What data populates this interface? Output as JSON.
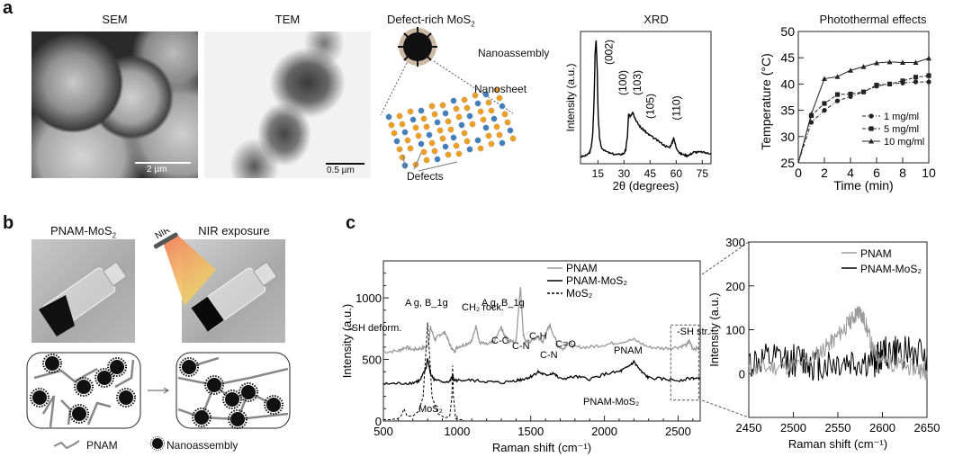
{
  "panel_a": {
    "letter": "a",
    "sem": {
      "title": "SEM",
      "scale_bar": "2 µm"
    },
    "tem": {
      "title": "TEM",
      "scale_bar": "0.5 µm"
    },
    "schematic": {
      "title_main": "Defect-rich MoS",
      "title_sub": "2",
      "nanoassembly": "Nanoassembly",
      "nanosheet": "Nanosheet",
      "defects": "Defects"
    }
  },
  "panel_b": {
    "letter": "b",
    "left_title_main": "PNAM-MoS",
    "left_title_sub": "2",
    "right_title": "NIR exposure",
    "nir_label": "NIR",
    "legend_pnam": "PNAM",
    "legend_nano": "Nanoassembly"
  },
  "panel_c": {
    "letter": "c"
  },
  "chart_data": [
    {
      "id": "xrd",
      "type": "line",
      "title": "XRD",
      "xlabel": "2θ (degrees)",
      "ylabel": "Intensity (a.u.)",
      "xlim": [
        5,
        80
      ],
      "xticks": [
        15,
        30,
        45,
        60,
        75
      ],
      "x": [
        5,
        8,
        10,
        11,
        12,
        12.8,
        13.4,
        14,
        14.6,
        15.2,
        16,
        17,
        19,
        22,
        25,
        28,
        30,
        31,
        32,
        32.6,
        33,
        34,
        35,
        35.5,
        36.5,
        38,
        40,
        42,
        43,
        45,
        48,
        51,
        54,
        56,
        57.5,
        58.5,
        60,
        62,
        64,
        66,
        68,
        70,
        72,
        75,
        78,
        80
      ],
      "values": [
        0.02,
        0.03,
        0.05,
        0.09,
        0.2,
        0.5,
        0.9,
        1.0,
        0.75,
        0.35,
        0.17,
        0.1,
        0.07,
        0.05,
        0.04,
        0.04,
        0.05,
        0.08,
        0.2,
        0.38,
        0.36,
        0.37,
        0.4,
        0.38,
        0.34,
        0.3,
        0.26,
        0.24,
        0.22,
        0.2,
        0.17,
        0.14,
        0.11,
        0.1,
        0.13,
        0.18,
        0.1,
        0.05,
        0.04,
        0.03,
        0.04,
        0.06,
        0.06,
        0.06,
        0.05,
        0.05
      ],
      "annotations": [
        "(002)",
        "(100)",
        "(103)",
        "(105)",
        "(110)"
      ],
      "annotation_x": [
        14,
        32.5,
        35.5,
        43,
        58
      ]
    },
    {
      "id": "photothermal",
      "type": "line",
      "title": "Photothermal effects",
      "xlabel": "Time (min)",
      "ylabel": "Temperature (°C)",
      "xlim": [
        0,
        10
      ],
      "ylim": [
        25,
        50
      ],
      "xticks": [
        0,
        2,
        4,
        6,
        8,
        10
      ],
      "yticks": [
        25,
        30,
        35,
        40,
        45,
        50
      ],
      "x": [
        0,
        1,
        2,
        3,
        4,
        5,
        6,
        7,
        8,
        9,
        10
      ],
      "series": [
        {
          "name": "1 mg/ml",
          "marker": "circle",
          "dash": "dashdot",
          "values": [
            25,
            32.7,
            35.0,
            36.8,
            37.6,
            38.5,
            39.6,
            40.0,
            40.2,
            40.4,
            40.4
          ]
        },
        {
          "name": "5 mg/ml",
          "marker": "square",
          "dash": "dash",
          "values": [
            25,
            34.0,
            36.3,
            38.0,
            38.1,
            38.5,
            39.8,
            40.0,
            40.6,
            41.3,
            41.6
          ]
        },
        {
          "name": "10 mg/ml",
          "marker": "triangle",
          "dash": "solid",
          "values": [
            25,
            34.3,
            41.0,
            41.4,
            42.6,
            43.3,
            44.0,
            44.2,
            44.1,
            44.1,
            44.9
          ]
        }
      ],
      "legend": "lower-right"
    },
    {
      "id": "raman",
      "type": "line",
      "xlabel": "Raman shift (cm⁻¹)",
      "ylabel": "Intensity (a.u.)",
      "xlim": [
        500,
        2650
      ],
      "ylim": [
        0,
        1300
      ],
      "xticks": [
        500,
        1000,
        1500,
        2000,
        2500
      ],
      "yticks": [
        0,
        500,
        1000
      ],
      "series": [
        {
          "name": "PNAM",
          "color": "#9a9a9a",
          "x": [
            500,
            600,
            650,
            700,
            750,
            800,
            820,
            850,
            880,
            920,
            950,
            980,
            1000,
            1050,
            1100,
            1130,
            1150,
            1200,
            1250,
            1300,
            1320,
            1350,
            1400,
            1430,
            1450,
            1470,
            1500,
            1550,
            1580,
            1600,
            1630,
            1680,
            1720,
            1750,
            1800,
            1900,
            2000,
            2100,
            2200,
            2300,
            2400,
            2500,
            2560,
            2575,
            2600,
            2650
          ],
          "values": [
            560,
            570,
            600,
            580,
            590,
            600,
            760,
            660,
            700,
            720,
            620,
            560,
            600,
            620,
            650,
            780,
            640,
            620,
            640,
            760,
            700,
            650,
            640,
            1100,
            700,
            640,
            650,
            680,
            640,
            700,
            780,
            620,
            580,
            640,
            600,
            600,
            620,
            640,
            660,
            600,
            590,
            600,
            620,
            650,
            590,
            590
          ]
        },
        {
          "name": "PNAM-MoS₂",
          "color": "#000000",
          "x": [
            500,
            600,
            700,
            750,
            790,
            800,
            820,
            850,
            950,
            970,
            980,
            1000,
            1100,
            1200,
            1300,
            1400,
            1450,
            1500,
            1550,
            1600,
            1650,
            1700,
            1800,
            1900,
            2000,
            2100,
            2150,
            2200,
            2250,
            2300,
            2400,
            2500,
            2600,
            2650
          ],
          "values": [
            300,
            305,
            310,
            330,
            430,
            510,
            380,
            330,
            320,
            370,
            320,
            330,
            330,
            320,
            310,
            330,
            340,
            360,
            400,
            370,
            390,
            340,
            360,
            340,
            380,
            400,
            430,
            480,
            400,
            350,
            340,
            330,
            350,
            340
          ]
        },
        {
          "name": "MoS₂",
          "color": "#000000",
          "dash": "dash",
          "x": [
            500,
            550,
            600,
            620,
            640,
            660,
            700,
            740,
            770,
            790,
            800,
            810,
            830,
            870,
            920,
            950,
            965,
            970,
            975,
            990,
            1050
          ],
          "values": [
            10,
            12,
            20,
            40,
            100,
            40,
            40,
            80,
            200,
            600,
            800,
            600,
            200,
            60,
            25,
            40,
            200,
            450,
            200,
            20,
            5
          ]
        }
      ],
      "annotations": [
        "-SH deform.",
        "A_g, B_1g",
        "CH₂ rock.",
        "A_g, B_1g",
        "C-C",
        "C-N",
        "C-H",
        "C-N",
        "C=O",
        "PNAM",
        "PNAM-MoS₂",
        "MoS₂",
        "-SH str."
      ],
      "legend": "top-right"
    },
    {
      "id": "raman_zoom",
      "type": "line",
      "xlabel": "Raman shift (cm⁻¹)",
      "ylabel": "Intensity (a.u.)",
      "xlim": [
        2450,
        2650
      ],
      "ylim": [
        -100,
        300
      ],
      "xticks": [
        2450,
        2500,
        2550,
        2600,
        2650
      ],
      "yticks": [
        0,
        100,
        200,
        300
      ],
      "series": [
        {
          "name": "PNAM",
          "color": "#9a9a9a",
          "x": [
            2450,
            2480,
            2510,
            2530,
            2545,
            2560,
            2570,
            2575,
            2580,
            2590,
            2600,
            2620,
            2640,
            2650
          ],
          "values": [
            10,
            15,
            20,
            50,
            75,
            110,
            135,
            140,
            120,
            50,
            30,
            20,
            10,
            5
          ]
        },
        {
          "name": "PNAM-MoS₂",
          "color": "#000000",
          "x": [
            2450,
            2480,
            2510,
            2530,
            2560,
            2590,
            2600,
            2620,
            2650
          ],
          "values": [
            25,
            30,
            30,
            20,
            25,
            25,
            45,
            50,
            40
          ]
        }
      ],
      "legend": "top-right"
    }
  ]
}
